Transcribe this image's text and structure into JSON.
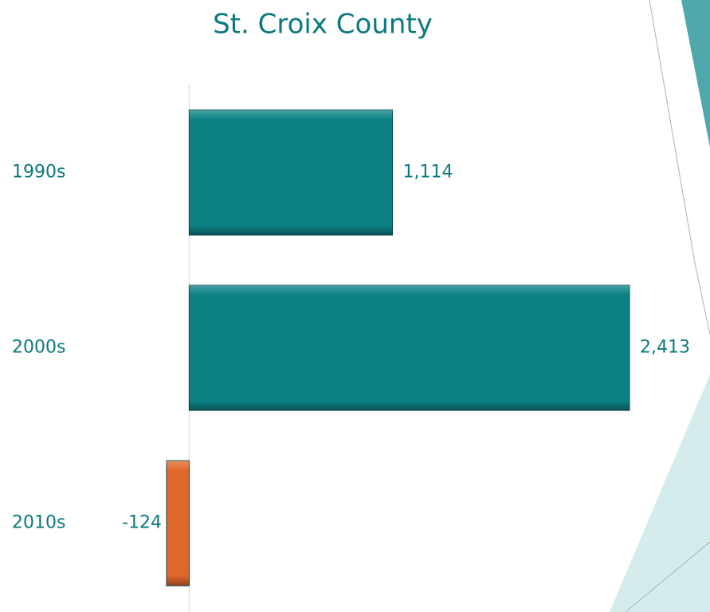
{
  "chart_data": {
    "type": "hbar",
    "title": "St. Croix County",
    "categories": [
      "1990s",
      "2000s",
      "2010s"
    ],
    "values": [
      1114,
      2413,
      -124
    ],
    "value_labels": [
      "1,114",
      "2,413",
      "-124"
    ],
    "colors": [
      "#0b8185",
      "#0b8185",
      "#e0672a"
    ]
  }
}
